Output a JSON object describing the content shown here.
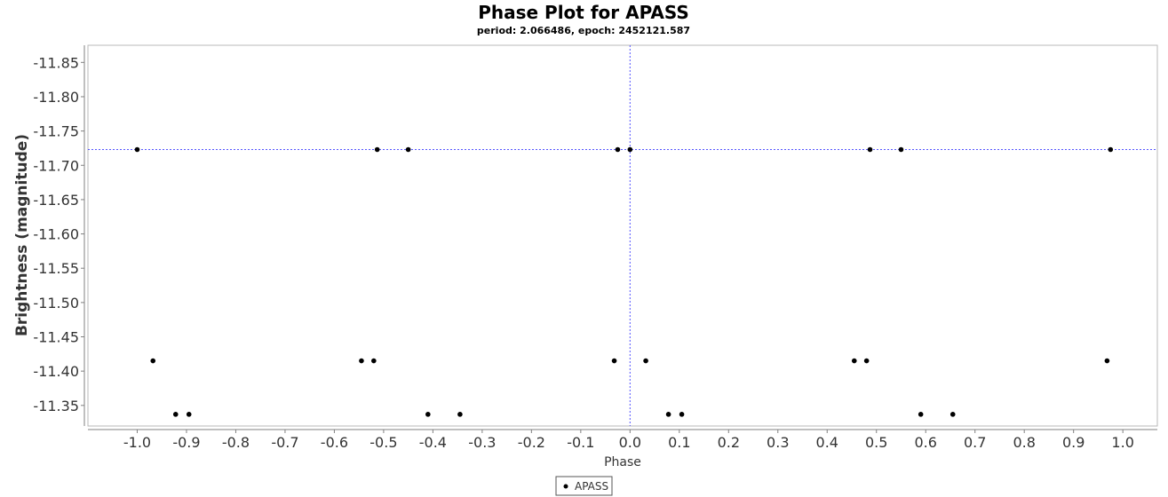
{
  "chart_data": {
    "type": "scatter",
    "title": "Phase Plot for APASS",
    "subtitle": "period: 2.066486, epoch: 2452121.587",
    "xlabel": "Phase",
    "ylabel": "Brightness (magnitude)",
    "xlim": [
      -1.1,
      1.07
    ],
    "ylim": [
      -11.875,
      -11.32
    ],
    "y_inverted": true,
    "x_ticks": [
      "-1.0",
      "-0.9",
      "-0.8",
      "-0.7",
      "-0.6",
      "-0.5",
      "-0.4",
      "-0.3",
      "-0.2",
      "-0.1",
      "0.0",
      "0.1",
      "0.2",
      "0.3",
      "0.4",
      "0.5",
      "0.6",
      "0.7",
      "0.8",
      "0.9",
      "1.0"
    ],
    "x_tick_values": [
      -1.0,
      -0.9,
      -0.8,
      -0.7,
      -0.6,
      -0.5,
      -0.4,
      -0.3,
      -0.2,
      -0.1,
      0.0,
      0.1,
      0.2,
      0.3,
      0.4,
      0.5,
      0.6,
      0.7,
      0.8,
      0.9,
      1.0
    ],
    "y_ticks": [
      "-11.85",
      "-11.80",
      "-11.75",
      "-11.70",
      "-11.65",
      "-11.60",
      "-11.55",
      "-11.50",
      "-11.45",
      "-11.40",
      "-11.35"
    ],
    "y_tick_values": [
      -11.85,
      -11.8,
      -11.75,
      -11.7,
      -11.65,
      -11.6,
      -11.55,
      -11.5,
      -11.45,
      -11.4,
      -11.35
    ],
    "crosshair": {
      "x": 0.0,
      "y": -11.723
    },
    "legend": {
      "position": "bottom-center",
      "entries": [
        "APASS"
      ]
    },
    "grid": false,
    "series": [
      {
        "name": "APASS",
        "color": "#000000",
        "points": [
          {
            "x": -1.0,
            "y": -11.723
          },
          {
            "x": -0.513,
            "y": -11.723
          },
          {
            "x": -0.45,
            "y": -11.723
          },
          {
            "x": -0.025,
            "y": -11.723
          },
          {
            "x": 0.0,
            "y": -11.723
          },
          {
            "x": 0.487,
            "y": -11.723
          },
          {
            "x": 0.55,
            "y": -11.723
          },
          {
            "x": 0.975,
            "y": -11.723
          },
          {
            "x": -0.968,
            "y": -11.415
          },
          {
            "x": -0.545,
            "y": -11.415
          },
          {
            "x": -0.52,
            "y": -11.415
          },
          {
            "x": -0.032,
            "y": -11.415
          },
          {
            "x": 0.032,
            "y": -11.415
          },
          {
            "x": 0.455,
            "y": -11.415
          },
          {
            "x": 0.48,
            "y": -11.415
          },
          {
            "x": 0.968,
            "y": -11.415
          },
          {
            "x": -0.922,
            "y": -11.337
          },
          {
            "x": -0.895,
            "y": -11.337
          },
          {
            "x": -0.41,
            "y": -11.337
          },
          {
            "x": -0.345,
            "y": -11.337
          },
          {
            "x": 0.078,
            "y": -11.337
          },
          {
            "x": 0.105,
            "y": -11.337
          },
          {
            "x": 0.59,
            "y": -11.337
          },
          {
            "x": 0.655,
            "y": -11.337
          }
        ]
      }
    ]
  }
}
